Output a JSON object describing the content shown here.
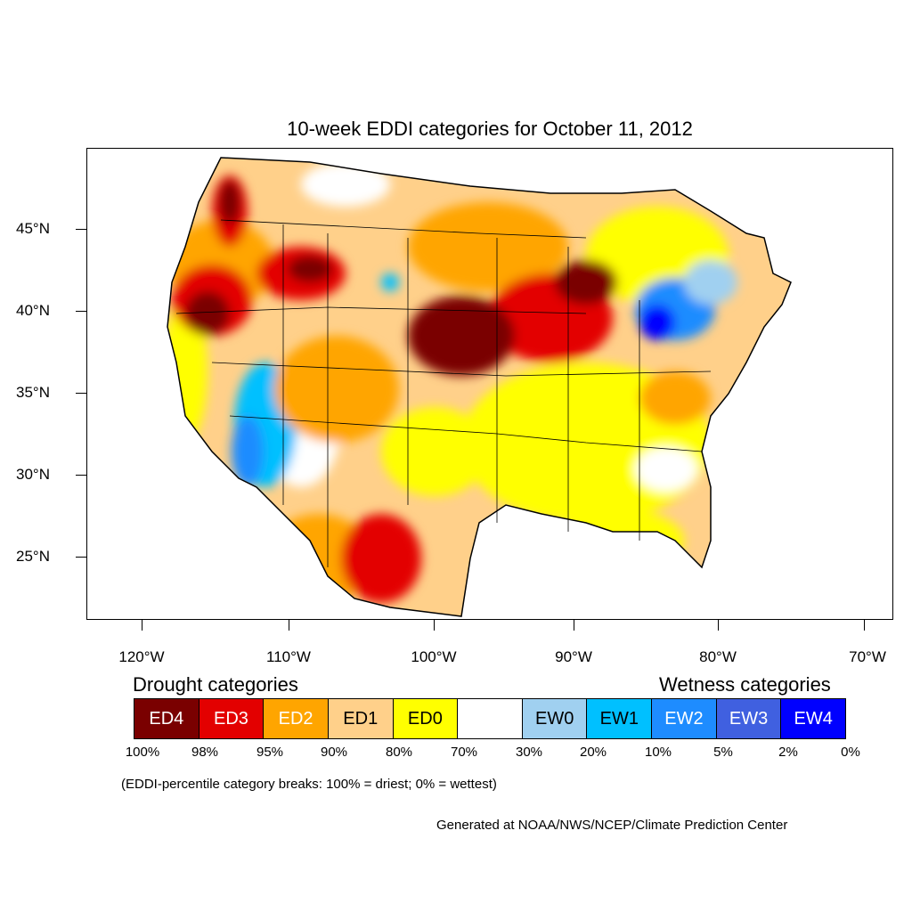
{
  "title": "10-week EDDI categories for October 11, 2012",
  "map": {
    "lat_labels": [
      "45°N",
      "40°N",
      "35°N",
      "30°N",
      "25°N"
    ],
    "lon_labels": [
      "120°W",
      "110°W",
      "100°W",
      "90°W",
      "80°W",
      "70°W"
    ],
    "colors": {
      "ED4": "#7a0000",
      "ED3": "#e30000",
      "ED2": "#ffa500",
      "ED1": "#ffd08a",
      "ED0": "#ffff00",
      "none": "#ffffff",
      "EW0": "#a0d0f0",
      "EW1": "#00c0ff",
      "EW2": "#1e8cff",
      "EW3": "#4060e0",
      "EW4": "#0000ff"
    }
  },
  "legend": {
    "drought_heading": "Drought categories",
    "wetness_heading": "Wetness categories",
    "categories": [
      {
        "label": "ED4",
        "color": "#7a0000",
        "text_color": "#ffffff"
      },
      {
        "label": "ED3",
        "color": "#e30000",
        "text_color": "#ffffff"
      },
      {
        "label": "ED2",
        "color": "#ffa500",
        "text_color": "#ffffff"
      },
      {
        "label": "ED1",
        "color": "#ffd08a",
        "text_color": "#000000"
      },
      {
        "label": "ED0",
        "color": "#ffff00",
        "text_color": "#000000"
      },
      {
        "label": "",
        "color": "#ffffff",
        "text_color": "#000000"
      },
      {
        "label": "EW0",
        "color": "#a0d0f0",
        "text_color": "#000000"
      },
      {
        "label": "EW1",
        "color": "#00c0ff",
        "text_color": "#000000"
      },
      {
        "label": "EW2",
        "color": "#1e8cff",
        "text_color": "#ffffff"
      },
      {
        "label": "EW3",
        "color": "#4060e0",
        "text_color": "#ffffff"
      },
      {
        "label": "EW4",
        "color": "#0000ff",
        "text_color": "#ffffff"
      }
    ],
    "breaks": [
      "100%",
      "98%",
      "95%",
      "90%",
      "80%",
      "70%",
      "30%",
      "20%",
      "10%",
      "5%",
      "2%",
      "0%"
    ],
    "note": "(EDDI-percentile category breaks: 100% = driest; 0% = wettest)"
  },
  "credit": "Generated at NOAA/NWS/NCEP/Climate Prediction Center"
}
